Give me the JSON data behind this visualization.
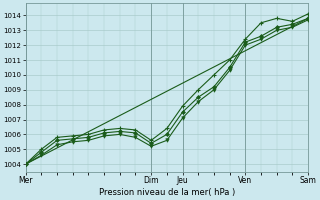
{
  "title": "Pression niveau de la mer( hPa )",
  "bg_color": "#cce8ee",
  "grid_color": "#aacccc",
  "line_color": "#1a5c1a",
  "xlim": [
    0,
    108
  ],
  "ylim": [
    1003.5,
    1014.8
  ],
  "yticks": [
    1004,
    1005,
    1006,
    1007,
    1008,
    1009,
    1010,
    1011,
    1012,
    1013,
    1014
  ],
  "xtick_pos": [
    0,
    48,
    60,
    84,
    108
  ],
  "xtick_labels": [
    "Mer",
    "Dim",
    "Jeu",
    "Ven",
    "Sam"
  ],
  "vlines": [
    0,
    48,
    60,
    84,
    108
  ],
  "line_trend_x": [
    0,
    108
  ],
  "line_trend_y": [
    1004.0,
    1013.8
  ],
  "line_main_x": [
    0,
    6,
    12,
    18,
    24,
    30,
    36,
    42,
    48,
    54,
    60,
    66,
    72,
    78,
    84,
    90,
    96,
    102,
    108
  ],
  "line_main_y": [
    1004.0,
    1004.8,
    1005.6,
    1005.7,
    1005.8,
    1006.1,
    1006.2,
    1006.1,
    1005.4,
    1006.0,
    1007.5,
    1008.5,
    1009.2,
    1010.5,
    1012.2,
    1012.6,
    1013.2,
    1013.4,
    1013.8
  ],
  "line_low_x": [
    0,
    6,
    12,
    18,
    24,
    30,
    36,
    42,
    48,
    54,
    60,
    66,
    72,
    78,
    84,
    90,
    96,
    102,
    108
  ],
  "line_low_y": [
    1004.0,
    1004.6,
    1005.3,
    1005.5,
    1005.6,
    1005.9,
    1006.0,
    1005.8,
    1005.2,
    1005.6,
    1007.1,
    1008.2,
    1009.0,
    1010.3,
    1012.0,
    1012.4,
    1013.0,
    1013.2,
    1013.7
  ],
  "line_high_x": [
    0,
    6,
    12,
    18,
    24,
    30,
    36,
    42,
    48,
    54,
    60,
    66,
    72,
    78,
    84,
    90,
    96,
    102,
    108
  ],
  "line_high_y": [
    1004.0,
    1005.0,
    1005.8,
    1005.9,
    1006.0,
    1006.3,
    1006.4,
    1006.3,
    1005.6,
    1006.4,
    1007.9,
    1009.0,
    1010.0,
    1011.0,
    1012.4,
    1013.5,
    1013.8,
    1013.6,
    1014.1
  ],
  "figsize": [
    3.2,
    2.0
  ],
  "dpi": 100
}
